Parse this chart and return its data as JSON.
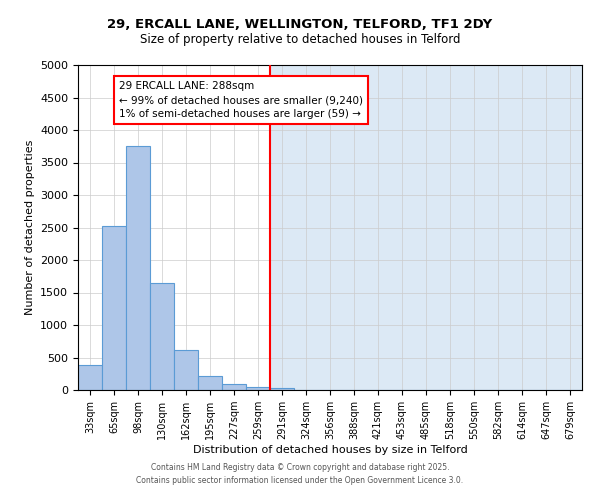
{
  "title_line1": "29, ERCALL LANE, WELLINGTON, TELFORD, TF1 2DY",
  "title_line2": "Size of property relative to detached houses in Telford",
  "categories": [
    "33sqm",
    "65sqm",
    "98sqm",
    "130sqm",
    "162sqm",
    "195sqm",
    "227sqm",
    "259sqm",
    "291sqm",
    "324sqm",
    "356sqm",
    "388sqm",
    "421sqm",
    "453sqm",
    "485sqm",
    "518sqm",
    "550sqm",
    "582sqm",
    "614sqm",
    "647sqm",
    "679sqm"
  ],
  "values": [
    380,
    2520,
    3760,
    1650,
    620,
    220,
    100,
    40,
    30,
    0,
    0,
    0,
    0,
    0,
    0,
    0,
    0,
    0,
    0,
    0,
    0
  ],
  "ylabel": "Number of detached properties",
  "xlabel": "Distribution of detached houses by size in Telford",
  "ylim": [
    0,
    5000
  ],
  "bar_color": "#aec6e8",
  "bar_edge_color": "#5b9bd5",
  "highlight_line_index": 8,
  "highlight_line_color": "red",
  "highlight_bg_color": "#dce9f5",
  "annotation_text": "29 ERCALL LANE: 288sqm\n← 99% of detached houses are smaller (9,240)\n1% of semi-detached houses are larger (59) →",
  "footer_line1": "Contains HM Land Registry data © Crown copyright and database right 2025.",
  "footer_line2": "Contains public sector information licensed under the Open Government Licence 3.0.",
  "yticks": [
    0,
    500,
    1000,
    1500,
    2000,
    2500,
    3000,
    3500,
    4000,
    4500,
    5000
  ]
}
